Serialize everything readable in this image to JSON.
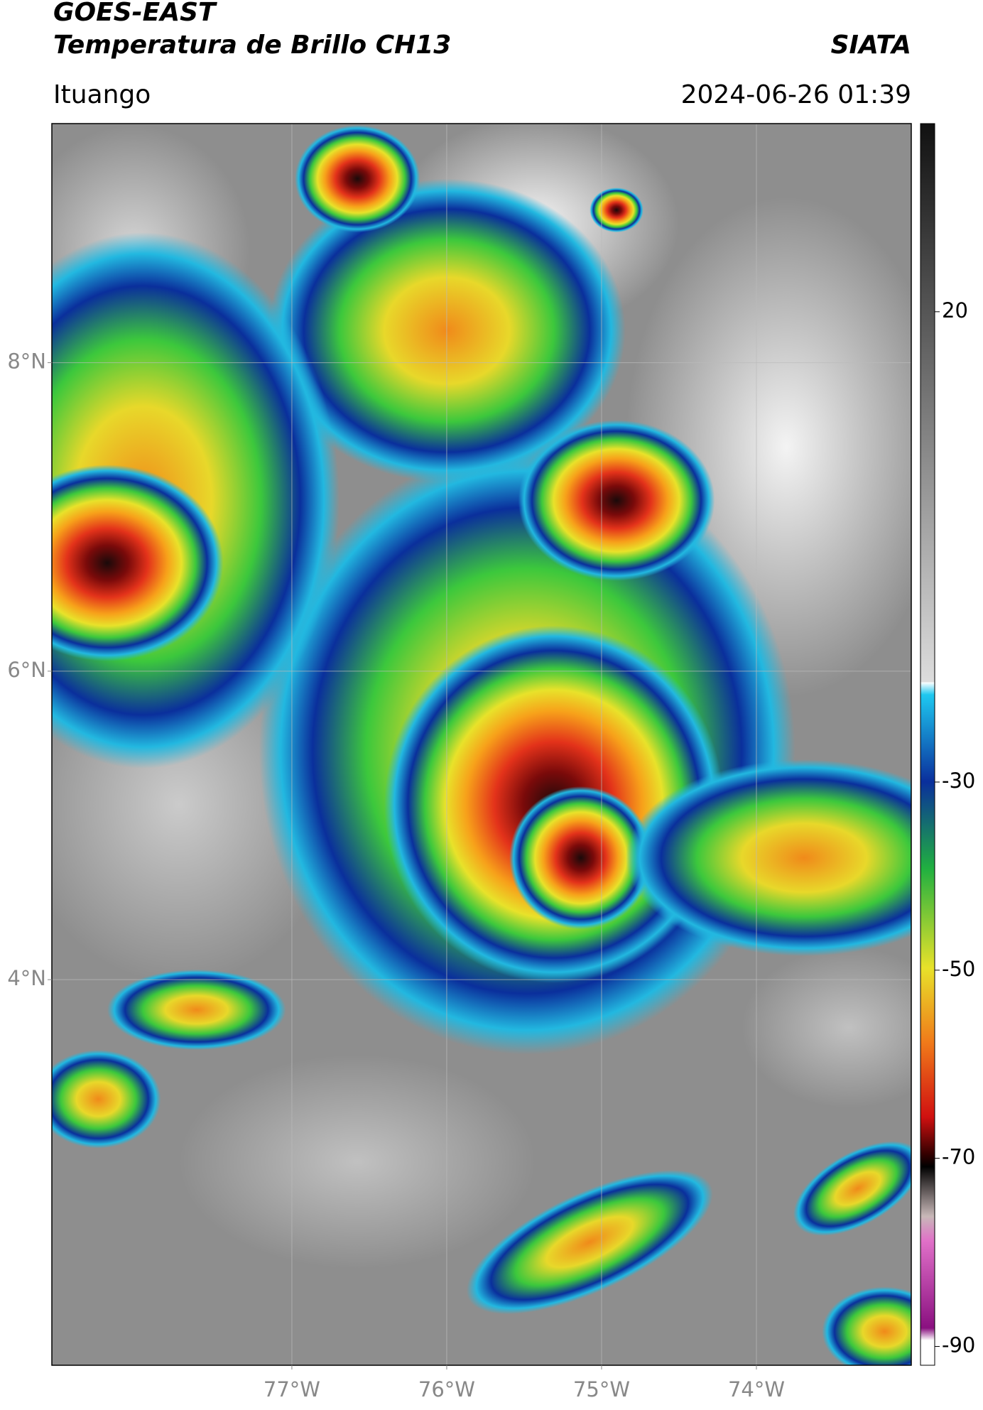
{
  "header": {
    "title_line1": "GOES-EAST",
    "title_line2": "Temperatura de Brillo CH13",
    "source": "SIATA",
    "location": "Ituango",
    "datetime": "2024-06-26 01:39"
  },
  "map": {
    "xlim": [
      -78.55,
      -73.0
    ],
    "ylim": [
      1.5,
      9.55
    ],
    "xticks": [
      {
        "value": -77,
        "label": "77°W"
      },
      {
        "value": -76,
        "label": "76°W"
      },
      {
        "value": -75,
        "label": "75°W"
      },
      {
        "value": -74,
        "label": "74°W"
      }
    ],
    "yticks": [
      {
        "value": 8,
        "label": "8°N"
      },
      {
        "value": 6,
        "label": "6°N"
      },
      {
        "value": 4,
        "label": "4°N"
      }
    ]
  },
  "colorbar": {
    "lim": [
      -92,
      40
    ],
    "ticks": [
      20,
      -30,
      -50,
      -70,
      -90
    ]
  }
}
